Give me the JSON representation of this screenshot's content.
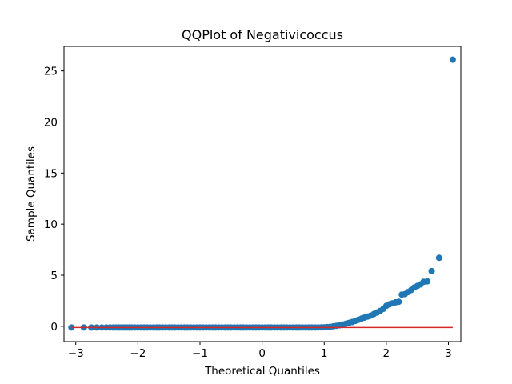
{
  "chart_data": {
    "type": "scatter",
    "title": "QQPlot of Negativicoccus",
    "xlabel": "Theoretical Quantiles",
    "ylabel": "Sample Quantiles",
    "xlim": [
      -3.19,
      3.2
    ],
    "ylim": [
      -1.5,
      27.4
    ],
    "xticks": [
      -3,
      -2,
      -1,
      0,
      1,
      2,
      3
    ],
    "xtick_labels": [
      "−3",
      "−2",
      "−1",
      "0",
      "1",
      "2",
      "3"
    ],
    "yticks": [
      0,
      5,
      10,
      15,
      20,
      25
    ],
    "yticks_labels": [
      "0",
      "5",
      "10",
      "15",
      "20",
      "25"
    ],
    "grid": false,
    "marker_color": "#1f77b4",
    "line_color": "#d62728",
    "reference_line": {
      "x": [
        -3.07,
        3.07
      ],
      "y": [
        -0.12,
        -0.12
      ]
    },
    "series": [
      {
        "x": [
          -3.07,
          -2.87,
          -2.75,
          -2.66,
          -2.58,
          -2.51,
          -2.45,
          -2.4,
          -2.35,
          -2.3,
          -2.26,
          -2.22,
          -2.18,
          -2.14,
          -2.1,
          -2.05,
          -2.0,
          -1.95,
          -1.9,
          -1.85,
          -1.8,
          -1.75,
          -1.7,
          -1.65,
          -1.6,
          -1.55,
          -1.5,
          -1.45,
          -1.4,
          -1.35,
          -1.3,
          -1.25,
          -1.2,
          -1.15,
          -1.1,
          -1.05,
          -1.0,
          -0.95,
          -0.9,
          -0.85,
          -0.8,
          -0.75,
          -0.7,
          -0.65,
          -0.6,
          -0.55,
          -0.5,
          -0.45,
          -0.4,
          -0.35,
          -0.3,
          -0.25,
          -0.2,
          -0.15,
          -0.1,
          -0.05,
          0.0,
          0.05,
          0.1,
          0.15,
          0.2,
          0.25,
          0.3,
          0.35,
          0.4,
          0.45,
          0.5,
          0.55,
          0.6,
          0.65,
          0.7,
          0.75,
          0.8,
          0.85,
          0.9,
          0.95,
          1.0,
          1.05,
          1.1,
          1.15,
          1.2,
          1.25,
          1.3,
          1.35,
          1.4,
          1.45,
          1.5,
          1.55,
          1.6,
          1.65,
          1.7,
          1.75,
          1.8,
          1.85,
          1.9,
          1.95,
          2.0,
          2.05,
          2.1,
          2.15,
          2.2,
          2.25,
          2.3,
          2.35,
          2.4,
          2.45,
          2.5,
          2.55,
          2.6,
          2.66,
          2.73,
          2.85,
          3.07
        ],
        "y": [
          -0.12,
          -0.12,
          -0.12,
          -0.12,
          -0.12,
          -0.12,
          -0.12,
          -0.12,
          -0.12,
          -0.12,
          -0.12,
          -0.12,
          -0.12,
          -0.12,
          -0.12,
          -0.12,
          -0.12,
          -0.12,
          -0.12,
          -0.12,
          -0.12,
          -0.12,
          -0.12,
          -0.12,
          -0.12,
          -0.12,
          -0.12,
          -0.12,
          -0.12,
          -0.12,
          -0.12,
          -0.12,
          -0.12,
          -0.12,
          -0.12,
          -0.12,
          -0.12,
          -0.12,
          -0.12,
          -0.12,
          -0.12,
          -0.12,
          -0.12,
          -0.12,
          -0.12,
          -0.12,
          -0.12,
          -0.12,
          -0.12,
          -0.12,
          -0.12,
          -0.12,
          -0.12,
          -0.12,
          -0.12,
          -0.12,
          -0.12,
          -0.12,
          -0.12,
          -0.12,
          -0.12,
          -0.12,
          -0.12,
          -0.12,
          -0.12,
          -0.12,
          -0.12,
          -0.12,
          -0.12,
          -0.12,
          -0.12,
          -0.12,
          -0.12,
          -0.12,
          -0.12,
          -0.11,
          -0.1,
          -0.08,
          -0.05,
          0.0,
          0.05,
          0.1,
          0.17,
          0.25,
          0.33,
          0.42,
          0.52,
          0.63,
          0.75,
          0.85,
          0.95,
          1.05,
          1.2,
          1.35,
          1.5,
          1.7,
          2.0,
          2.15,
          2.25,
          2.35,
          2.4,
          3.1,
          3.15,
          3.35,
          3.55,
          3.8,
          3.95,
          4.1,
          4.35,
          4.4,
          5.4,
          6.7,
          26.1
        ]
      }
    ]
  }
}
